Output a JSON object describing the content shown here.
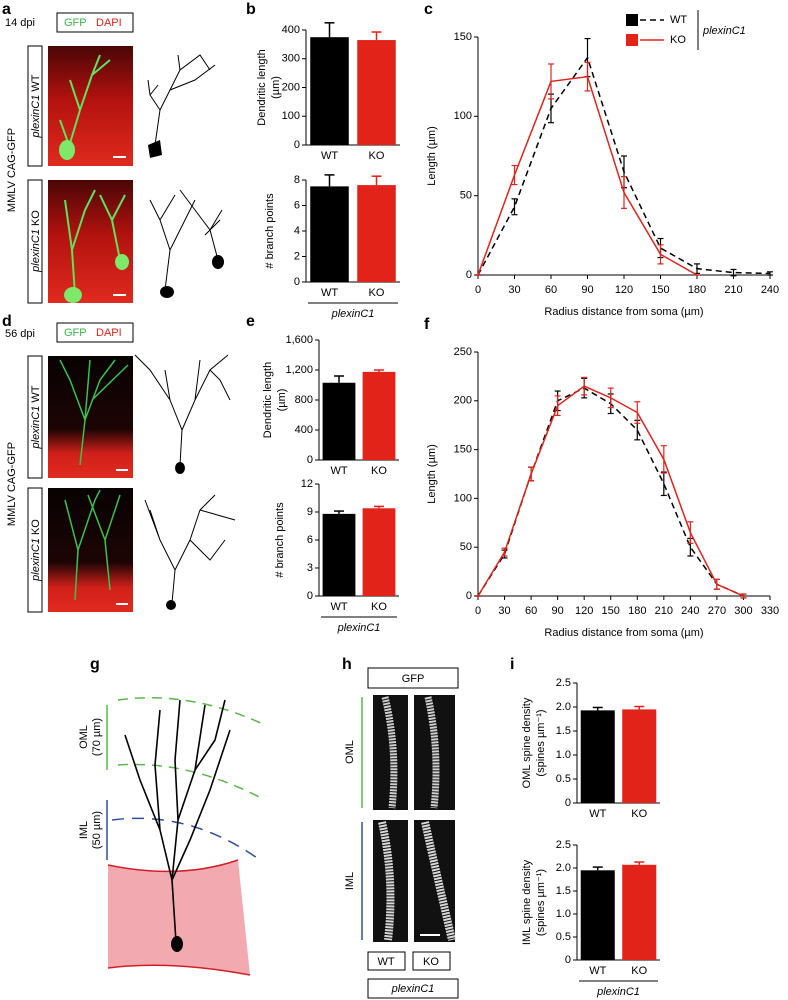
{
  "panel_letters": [
    "a",
    "b",
    "c",
    "d",
    "e",
    "f",
    "g",
    "h",
    "i"
  ],
  "panel_a": {
    "time": "14 dpi",
    "stain": [
      "GFP",
      "DAPI"
    ],
    "construct": "MMLV CAG-GFP",
    "rows": [
      {
        "gene": "plexinC1",
        "genotype": "WT"
      },
      {
        "gene": "plexinC1",
        "genotype": "KO"
      }
    ]
  },
  "panel_d": {
    "time": "56 dpi",
    "stain": [
      "GFP",
      "DAPI"
    ],
    "construct": "MMLV CAG-GFP",
    "rows": [
      {
        "gene": "plexinC1",
        "genotype": "WT"
      },
      {
        "gene": "plexinC1",
        "genotype": "KO"
      }
    ]
  },
  "panel_g": {
    "layers": [
      {
        "name": "OML",
        "depth": "(70 µm)"
      },
      {
        "name": "IML",
        "depth": "(50 µm)"
      }
    ]
  },
  "panel_h": {
    "stain": "GFP",
    "layers": [
      "OML",
      "IML"
    ],
    "genotypes": [
      "WT",
      "KO"
    ],
    "group": "plexinC1"
  },
  "chart_data": [
    {
      "type": "bar",
      "ylabel": [
        "Dendritic length",
        "(µm)"
      ],
      "categories": [
        "WT",
        "KO"
      ],
      "values": [
        375,
        365
      ],
      "errors": [
        50,
        28
      ],
      "colors": [
        "#000000",
        "#e2231a"
      ],
      "ylim": [
        0,
        400
      ],
      "yticks": [
        0,
        100,
        200,
        300,
        400
      ]
    },
    {
      "type": "bar",
      "ylabel": [
        "# branch points"
      ],
      "categories": [
        "WT",
        "KO"
      ],
      "values": [
        7.5,
        7.6
      ],
      "errors": [
        0.9,
        0.7
      ],
      "colors": [
        "#000000",
        "#e2231a"
      ],
      "ylim": [
        0,
        8
      ],
      "yticks": [
        0,
        2,
        4,
        6,
        8
      ],
      "group_label": "plexinC1"
    },
    {
      "type": "line",
      "xlabel": "Radius distance from soma (µm)",
      "ylabel": [
        "Length (µm)"
      ],
      "x": [
        0,
        30,
        60,
        90,
        120,
        150,
        180,
        210,
        240
      ],
      "series": [
        {
          "name": "WT",
          "color": "#000000",
          "line_style": "dashed",
          "values": [
            0,
            43,
            105,
            137,
            65,
            17,
            4,
            1.5,
            1
          ],
          "errors": [
            0,
            5,
            9,
            12,
            10,
            6,
            3,
            2,
            1
          ]
        },
        {
          "name": "KO",
          "color": "#e2231a",
          "line_style": "solid",
          "values": [
            0,
            63,
            122,
            125,
            52,
            13,
            0,
            null,
            null
          ],
          "errors": [
            0,
            6,
            11,
            9,
            10,
            6,
            0,
            null,
            null
          ]
        }
      ],
      "legend_group": "plexinC1",
      "xlim": [
        0,
        240
      ],
      "xticks": [
        0,
        30,
        60,
        90,
        120,
        150,
        180,
        210,
        240
      ],
      "ylim": [
        0,
        150
      ],
      "yticks": [
        0,
        50,
        100,
        150
      ]
    },
    {
      "type": "bar",
      "ylabel": [
        "Dendritic length",
        "(µm)"
      ],
      "categories": [
        "WT",
        "KO"
      ],
      "values": [
        1030,
        1175
      ],
      "errors": [
        90,
        25
      ],
      "colors": [
        "#000000",
        "#e2231a"
      ],
      "ylim": [
        0,
        1600
      ],
      "yticks": [
        0,
        400,
        800,
        {
          "value": 1200,
          "label": "1,200"
        },
        {
          "value": 1600,
          "label": "1,600"
        }
      ]
    },
    {
      "type": "bar",
      "ylabel": [
        "# branch points"
      ],
      "categories": [
        "WT",
        "KO"
      ],
      "values": [
        8.8,
        9.4
      ],
      "errors": [
        0.3,
        0.2
      ],
      "colors": [
        "#000000",
        "#e2231a"
      ],
      "ylim": [
        0,
        12
      ],
      "yticks": [
        0,
        3,
        6,
        9,
        12
      ],
      "group_label": "plexinC1"
    },
    {
      "type": "line",
      "xlabel": "Radius distance from soma (µm)",
      "ylabel": [
        "Length (µm)"
      ],
      "x": [
        0,
        30,
        60,
        90,
        120,
        150,
        180,
        210,
        240,
        270,
        300
      ],
      "series": [
        {
          "color": "#000000",
          "line_style": "dashed",
          "values": [
            0,
            43,
            125,
            200,
            213,
            197,
            170,
            115,
            50,
            12,
            0
          ],
          "errors": [
            0,
            4,
            7,
            10,
            10,
            10,
            10,
            12,
            9,
            5,
            2
          ]
        },
        {
          "color": "#e2231a",
          "line_style": "solid",
          "values": [
            0,
            45,
            125,
            195,
            215,
            203,
            188,
            140,
            65,
            12,
            0
          ],
          "errors": [
            0,
            4,
            7,
            10,
            9,
            10,
            11,
            14,
            11,
            5,
            2
          ]
        }
      ],
      "xlim": [
        0,
        330
      ],
      "xticks": [
        0,
        30,
        60,
        90,
        120,
        150,
        180,
        210,
        240,
        270,
        300,
        330
      ],
      "ylim": [
        0,
        250
      ],
      "yticks": [
        0,
        50,
        100,
        150,
        200,
        250
      ]
    },
    {
      "type": "bar",
      "ylabel": [
        "OML spine density",
        "(spines µm⁻¹)"
      ],
      "categories": [
        "WT",
        "KO"
      ],
      "values": [
        1.93,
        1.95
      ],
      "errors": [
        0.06,
        0.06
      ],
      "colors": [
        "#000000",
        "#e2231a"
      ],
      "ylim": [
        0,
        2.5
      ],
      "yticks": [
        0,
        0.5,
        {
          "value": 1,
          "label": "1.0"
        },
        1.5,
        {
          "value": 2,
          "label": "2.0"
        },
        2.5
      ]
    },
    {
      "type": "bar",
      "ylabel": [
        "IML spine density",
        "(spines µm⁻¹)"
      ],
      "categories": [
        "WT",
        "KO"
      ],
      "values": [
        1.95,
        2.07
      ],
      "errors": [
        0.07,
        0.06
      ],
      "colors": [
        "#000000",
        "#e2231a"
      ],
      "ylim": [
        0,
        2.5
      ],
      "yticks": [
        0,
        0.5,
        {
          "value": 1,
          "label": "1.0"
        },
        1.5,
        {
          "value": 2,
          "label": "2.0"
        },
        2.5
      ],
      "group_label": "plexinC1"
    }
  ]
}
